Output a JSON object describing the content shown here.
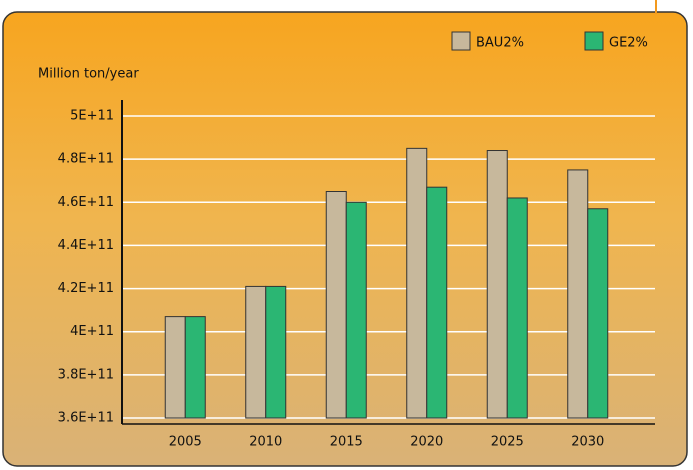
{
  "chart_data": {
    "type": "bar",
    "y_axis_label": "Million ton/year",
    "categories": [
      "2005",
      "2010",
      "2015",
      "2020",
      "2025",
      "2030"
    ],
    "series": [
      {
        "name": "BAU2%",
        "color": "#c7b89c",
        "values": [
          407000000000,
          421000000000,
          465000000000,
          485000000000,
          484000000000,
          475000000000
        ]
      },
      {
        "name": "GE2%",
        "color": "#2bb673",
        "values": [
          407000000000,
          421000000000,
          460000000000,
          467000000000,
          462000000000,
          457000000000
        ]
      }
    ],
    "ylim": [
      360000000000,
      500000000000
    ],
    "yticks": [
      {
        "value": 360000000000,
        "label": "3.6E+11"
      },
      {
        "value": 380000000000,
        "label": "3.8E+11"
      },
      {
        "value": 400000000000,
        "label": "4E+11"
      },
      {
        "value": 420000000000,
        "label": "4.2E+11"
      },
      {
        "value": 440000000000,
        "label": "4.4E+11"
      },
      {
        "value": 460000000000,
        "label": "4.6E+11"
      },
      {
        "value": 480000000000,
        "label": "4.8E+11"
      },
      {
        "value": 500000000000,
        "label": "5E+11"
      }
    ],
    "grid": true
  }
}
